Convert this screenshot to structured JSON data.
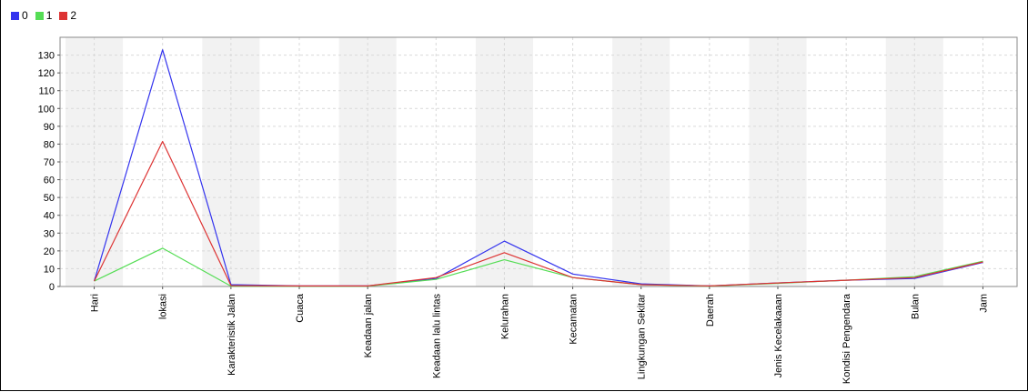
{
  "chart_data": {
    "type": "line",
    "categories": [
      "Hari",
      "lokasi",
      "Karakteristik Jalan",
      "Cuaca",
      "Keadaan jalan",
      "Keadaan lalu lintas",
      "Kelurahan",
      "Kecamatan",
      "Lingkungan Sekitar",
      "Daerah",
      "Jenis Kecelakaaan",
      "Kondisi Pengendara",
      "Bulan",
      "Jam"
    ],
    "series": [
      {
        "name": "0",
        "color": "#3333ee",
        "values": [
          3,
          133,
          1,
          0.3,
          0.3,
          4.5,
          25.5,
          7,
          1.5,
          0.3,
          2,
          3.5,
          4.5,
          13.5
        ]
      },
      {
        "name": "1",
        "color": "#55dd55",
        "values": [
          3,
          21.5,
          0.2,
          0.2,
          0.2,
          4,
          15,
          5,
          1,
          0.2,
          1.8,
          3.5,
          5.5,
          14.2
        ]
      },
      {
        "name": "2",
        "color": "#dd3333",
        "values": [
          3,
          81.5,
          0.5,
          0.3,
          0.3,
          5,
          19,
          5,
          1,
          0.3,
          2,
          3.5,
          5,
          13.8
        ]
      }
    ],
    "ylim": [
      0,
      140
    ],
    "yticks": [
      0,
      10,
      20,
      30,
      40,
      50,
      60,
      70,
      80,
      90,
      100,
      110,
      120,
      130
    ],
    "grid": true,
    "legend": "top-left",
    "band_color": "#f2f2f2",
    "grid_color": "#d9d9d9"
  }
}
